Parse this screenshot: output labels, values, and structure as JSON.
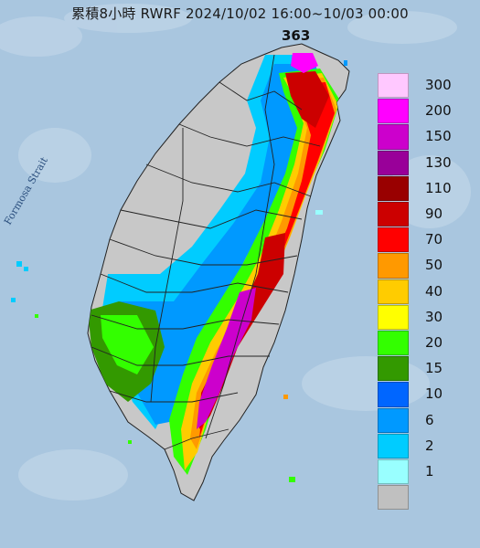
{
  "title": "累積8小時 RWRF 2024/10/02 16:00~10/03 00:00",
  "max_value_label": "363",
  "place_label": "Formosa Strait",
  "legend": [
    {
      "label": "300",
      "color": "#ffc8ff"
    },
    {
      "label": "200",
      "color": "#ff00ff"
    },
    {
      "label": "150",
      "color": "#cc00cc"
    },
    {
      "label": "130",
      "color": "#990099"
    },
    {
      "label": "110",
      "color": "#990000"
    },
    {
      "label": "90",
      "color": "#cc0000"
    },
    {
      "label": "70",
      "color": "#ff0000"
    },
    {
      "label": "50",
      "color": "#ff9900"
    },
    {
      "label": "40",
      "color": "#ffcc00"
    },
    {
      "label": "30",
      "color": "#ffff00"
    },
    {
      "label": "20",
      "color": "#33ff00"
    },
    {
      "label": "15",
      "color": "#339900"
    },
    {
      "label": "10",
      "color": "#0066ff"
    },
    {
      "label": "6",
      "color": "#0099ff"
    },
    {
      "label": "2",
      "color": "#00ccff"
    },
    {
      "label": "1",
      "color": "#99ffff"
    },
    {
      "label": "",
      "color": "#c0c0c0"
    }
  ],
  "colors": {
    "sea": "#a9c6df",
    "land_dry": "#c8c8c8"
  }
}
